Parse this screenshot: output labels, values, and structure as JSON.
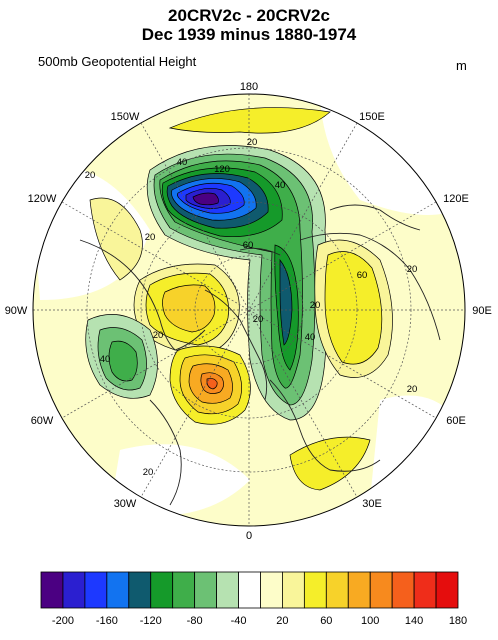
{
  "title_line1": "20CRV2c - 20CRV2c",
  "title_line2": "Dec 1939 minus 1880-1974",
  "subtitle": "500mb Geopotential Height",
  "units": "m",
  "longitude_labels": {
    "top": "180",
    "top_left": "150W",
    "top_right": "150E",
    "upper_left": "120W",
    "upper_right": "120E",
    "left": "90W",
    "right": "90E",
    "lower_left": "60W",
    "lower_right": "60E",
    "bottom_left": "30W",
    "bottom_right": "30E",
    "bottom": "0"
  },
  "contour_labels": [
    "20",
    "20",
    "40",
    "120",
    "40",
    "60",
    "20",
    "20",
    "60",
    "20",
    "40",
    "20",
    "40",
    "20",
    "20",
    "20"
  ],
  "colorbar": {
    "colors": [
      "#4b0082",
      "#2b1fd0",
      "#1d39ff",
      "#1273f0",
      "#0f5a6e",
      "#159a2a",
      "#3fae4a",
      "#6cc174",
      "#b6e2b1",
      "#ffffff",
      "#fdfdc9",
      "#f9f59a",
      "#f5ee2a",
      "#f7d22a",
      "#f8aa22",
      "#f78a1e",
      "#f5601c",
      "#ef2d1a",
      "#e50d0d"
    ],
    "tick_labels": [
      "-200",
      "-160",
      "-120",
      "-80",
      "-40",
      "20",
      "60",
      "100",
      "140",
      "180"
    ]
  },
  "colors": {
    "strong_negative": "#2b1fd0",
    "negative": "#159a2a",
    "weak_negative": "#6cc174",
    "weak_positive": "#fdfdc9",
    "positive": "#f5ee2a",
    "strong_positive": "#f8aa22"
  }
}
